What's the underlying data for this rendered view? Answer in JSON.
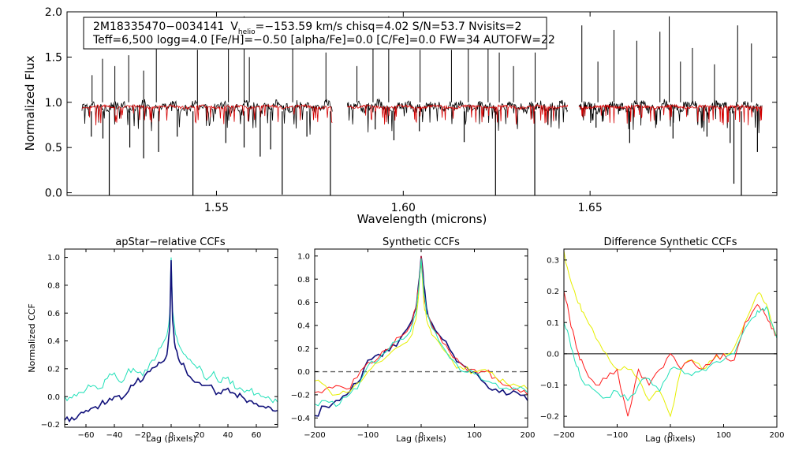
{
  "colors": {
    "observed": "#000000",
    "model": "#d40000",
    "cyan": "#1fe0b8",
    "navy": "#10107a",
    "red": "#ff1a1a",
    "yellow": "#e6ef00",
    "dashed": "#666666"
  },
  "header": {
    "id": "2M18335470−0034141",
    "v": "V",
    "helio": "helio",
    "vrest": "=−153.59 km/s  chisq=4.02  S/N=53.7  Nvisits=2",
    "line2": "Teff=6,500 logg=4.0 [Fe/H]=−0.50 [alpha/Fe]=0.0 [C/Fe]=0.0 FW=34 AUTOFW=22"
  },
  "chart_data": [
    {
      "type": "line",
      "name": "spectrum",
      "title": "",
      "xlabel": "Wavelength (microns)",
      "ylabel": "Normalized Flux",
      "xlim": [
        1.51,
        1.7
      ],
      "ylim": [
        -0.03,
        2.0
      ],
      "xticks": [
        1.55,
        1.6,
        1.65
      ],
      "xtick_labels": [
        "1.55",
        "1.60",
        "1.65"
      ],
      "yticks": [
        0.0,
        0.5,
        1.0,
        1.5,
        2.0
      ],
      "ytick_labels": [
        "0.0",
        "0.5",
        "1.0",
        "1.5",
        "2.0"
      ],
      "chip_ranges": [
        [
          1.514,
          1.581
        ],
        [
          1.585,
          1.644
        ],
        [
          1.647,
          1.696
        ]
      ],
      "continuum": 0.95,
      "series": [
        {
          "name": "observed",
          "color": "#000000"
        },
        {
          "name": "model",
          "color": "#d40000"
        }
      ],
      "emission_lines": [
        {
          "x": 1.5167,
          "y": 1.3
        },
        {
          "x": 1.5195,
          "y": 1.48
        },
        {
          "x": 1.5228,
          "y": 1.4
        },
        {
          "x": 1.5265,
          "y": 1.52
        },
        {
          "x": 1.5305,
          "y": 1.35
        },
        {
          "x": 1.5339,
          "y": 1.6
        },
        {
          "x": 1.5449,
          "y": 1.58
        },
        {
          "x": 1.5532,
          "y": 1.62
        },
        {
          "x": 1.5574,
          "y": 1.95
        },
        {
          "x": 1.5588,
          "y": 1.5
        },
        {
          "x": 1.5704,
          "y": 1.9
        },
        {
          "x": 1.5793,
          "y": 1.55
        },
        {
          "x": 1.5876,
          "y": 1.4
        },
        {
          "x": 1.5919,
          "y": 1.62
        },
        {
          "x": 1.5961,
          "y": 1.95
        },
        {
          "x": 1.6045,
          "y": 1.58
        },
        {
          "x": 1.6129,
          "y": 1.58
        },
        {
          "x": 1.6174,
          "y": 1.62
        },
        {
          "x": 1.6227,
          "y": 1.8
        },
        {
          "x": 1.6257,
          "y": 1.55
        },
        {
          "x": 1.6295,
          "y": 1.4
        },
        {
          "x": 1.6353,
          "y": 1.55
        },
        {
          "x": 1.6478,
          "y": 1.85
        },
        {
          "x": 1.6521,
          "y": 1.45
        },
        {
          "x": 1.6564,
          "y": 1.8
        },
        {
          "x": 1.6625,
          "y": 1.68
        },
        {
          "x": 1.6687,
          "y": 1.78
        },
        {
          "x": 1.6712,
          "y": 1.95
        },
        {
          "x": 1.6742,
          "y": 1.45
        },
        {
          "x": 1.6774,
          "y": 1.6
        },
        {
          "x": 1.6833,
          "y": 1.42
        },
        {
          "x": 1.6895,
          "y": 1.85
        },
        {
          "x": 1.6932,
          "y": 1.65
        }
      ],
      "absorption_lines": [
        {
          "x": 1.5165,
          "y": 0.62
        },
        {
          "x": 1.5196,
          "y": 0.6
        },
        {
          "x": 1.5213,
          "y": -0.03
        },
        {
          "x": 1.5268,
          "y": 0.5
        },
        {
          "x": 1.5305,
          "y": 0.38
        },
        {
          "x": 1.5345,
          "y": 0.45
        },
        {
          "x": 1.5395,
          "y": 0.62
        },
        {
          "x": 1.5437,
          "y": -0.03
        },
        {
          "x": 1.5525,
          "y": 0.55
        },
        {
          "x": 1.5574,
          "y": 0.5
        },
        {
          "x": 1.5617,
          "y": 0.4
        },
        {
          "x": 1.5645,
          "y": 0.48
        },
        {
          "x": 1.5676,
          "y": -0.02
        },
        {
          "x": 1.5742,
          "y": 0.62
        },
        {
          "x": 1.5805,
          "y": -0.03
        },
        {
          "x": 1.5925,
          "y": 0.7
        },
        {
          "x": 1.5975,
          "y": 0.58
        },
        {
          "x": 1.6043,
          "y": 0.68
        },
        {
          "x": 1.6163,
          "y": 0.56
        },
        {
          "x": 1.6247,
          "y": -0.03
        },
        {
          "x": 1.6352,
          "y": -0.03
        },
        {
          "x": 1.6387,
          "y": 0.75
        },
        {
          "x": 1.6516,
          "y": 0.72
        },
        {
          "x": 1.6606,
          "y": 0.55
        },
        {
          "x": 1.6722,
          "y": 0.6
        },
        {
          "x": 1.6813,
          "y": 0.62
        },
        {
          "x": 1.6875,
          "y": 0.55
        },
        {
          "x": 1.6885,
          "y": 0.1
        },
        {
          "x": 1.6905,
          "y": -0.03
        },
        {
          "x": 1.6948,
          "y": 0.45
        }
      ]
    },
    {
      "type": "line",
      "name": "apstar-ccf",
      "title": "apStar−relative CCFs",
      "xlabel": "Lag (pixels)",
      "ylabel": "Normalized CCF",
      "xlim": [
        -75,
        75
      ],
      "ylim": [
        -0.22,
        1.06
      ],
      "xticks": [
        -60,
        -40,
        -20,
        0,
        20,
        40,
        60
      ],
      "xtick_labels": [
        "−60",
        "−40",
        "−20",
        "0",
        "20",
        "40",
        "60"
      ],
      "yticks": [
        -0.2,
        0.0,
        0.2,
        0.4,
        0.6,
        0.8,
        1.0
      ],
      "ytick_labels": [
        "−0.2",
        "0.0",
        "0.2",
        "0.4",
        "0.6",
        "0.8",
        "1.0"
      ],
      "series": [
        {
          "name": "cyan",
          "color": "#1fe0b8",
          "x": [
            -75,
            -70,
            -65,
            -60,
            -55,
            -50,
            -45,
            -40,
            -35,
            -30,
            -25,
            -20,
            -15,
            -10,
            -6,
            -3,
            -1,
            0,
            1,
            3,
            6,
            10,
            15,
            20,
            25,
            30,
            35,
            40,
            45,
            50,
            55,
            60,
            65,
            70,
            75
          ],
          "y": [
            0.0,
            -0.01,
            0.03,
            0.05,
            0.08,
            0.06,
            0.13,
            0.17,
            0.1,
            0.2,
            0.18,
            0.15,
            0.24,
            0.3,
            0.38,
            0.44,
            0.6,
            1.0,
            0.62,
            0.45,
            0.36,
            0.3,
            0.24,
            0.22,
            0.12,
            0.18,
            0.1,
            0.14,
            0.06,
            0.05,
            0.04,
            0.02,
            0.0,
            -0.02,
            -0.04
          ]
        },
        {
          "name": "navy",
          "color": "#10107a",
          "x": [
            -75,
            -70,
            -65,
            -60,
            -55,
            -50,
            -45,
            -40,
            -35,
            -30,
            -25,
            -20,
            -15,
            -10,
            -6,
            -3,
            -1,
            0,
            1,
            3,
            6,
            10,
            15,
            20,
            25,
            30,
            35,
            40,
            45,
            50,
            55,
            60,
            65,
            70,
            75
          ],
          "y": [
            -0.17,
            -0.15,
            -0.13,
            -0.1,
            -0.08,
            -0.06,
            -0.04,
            0.0,
            -0.02,
            0.04,
            0.1,
            0.12,
            0.18,
            0.22,
            0.25,
            0.3,
            0.5,
            0.98,
            0.55,
            0.35,
            0.25,
            0.2,
            0.12,
            0.1,
            0.08,
            0.05,
            0.02,
            0.06,
            0.02,
            0.0,
            -0.03,
            -0.05,
            -0.07,
            -0.08,
            -0.1
          ]
        }
      ]
    },
    {
      "type": "line",
      "name": "synthetic-ccf",
      "title": "Synthetic CCFs",
      "xlabel": "Lag (pixels)",
      "ylabel": "",
      "xlim": [
        -200,
        200
      ],
      "ylim": [
        -0.48,
        1.06
      ],
      "xticks": [
        -200,
        -100,
        0,
        100,
        200
      ],
      "xtick_labels": [
        "−200",
        "−100",
        "0",
        "100",
        "200"
      ],
      "yticks": [
        -0.4,
        -0.2,
        0.0,
        0.2,
        0.4,
        0.6,
        0.8,
        1.0
      ],
      "ytick_labels": [
        "−0.4",
        "−0.2",
        "0.0",
        "0.2",
        "0.4",
        "0.6",
        "0.8",
        "1.0"
      ],
      "reference_line": 0.0,
      "series": [
        {
          "name": "navy",
          "color": "#10107a",
          "x": [
            -200,
            -180,
            -160,
            -140,
            -120,
            -100,
            -80,
            -60,
            -40,
            -20,
            -10,
            -5,
            0,
            5,
            10,
            20,
            40,
            60,
            80,
            100,
            120,
            140,
            160,
            180,
            200
          ],
          "y": [
            -0.38,
            -0.3,
            -0.25,
            -0.2,
            -0.1,
            0.1,
            0.15,
            0.18,
            0.28,
            0.42,
            0.55,
            0.75,
            1.0,
            0.75,
            0.55,
            0.42,
            0.28,
            0.15,
            0.05,
            0.0,
            -0.1,
            -0.15,
            -0.2,
            -0.18,
            -0.25
          ]
        },
        {
          "name": "red",
          "color": "#ff1a1a",
          "x": [
            -200,
            -180,
            -160,
            -140,
            -120,
            -100,
            -80,
            -60,
            -40,
            -20,
            -10,
            -5,
            0,
            5,
            10,
            20,
            40,
            60,
            80,
            100,
            120,
            140,
            160,
            180,
            200
          ],
          "y": [
            -0.18,
            -0.15,
            -0.12,
            -0.15,
            -0.05,
            0.08,
            0.12,
            0.2,
            0.3,
            0.4,
            0.55,
            0.72,
            1.0,
            0.7,
            0.5,
            0.4,
            0.25,
            0.12,
            0.05,
            0.02,
            0.0,
            -0.05,
            -0.12,
            -0.15,
            -0.2
          ]
        },
        {
          "name": "yellow",
          "color": "#e6ef00",
          "x": [
            -200,
            -180,
            -160,
            -140,
            -120,
            -100,
            -80,
            -60,
            -40,
            -20,
            -10,
            -5,
            0,
            5,
            10,
            20,
            40,
            60,
            80,
            100,
            120,
            140,
            160,
            180,
            200
          ],
          "y": [
            -0.08,
            -0.12,
            -0.2,
            -0.18,
            -0.1,
            0.0,
            0.08,
            0.15,
            0.22,
            0.3,
            0.45,
            0.65,
            0.95,
            0.6,
            0.45,
            0.32,
            0.2,
            0.08,
            0.02,
            0.0,
            0.02,
            -0.05,
            -0.1,
            -0.12,
            -0.15
          ]
        },
        {
          "name": "cyan",
          "color": "#1fe0b8",
          "x": [
            -200,
            -180,
            -160,
            -140,
            -120,
            -100,
            -80,
            -60,
            -40,
            -20,
            -10,
            -5,
            0,
            5,
            10,
            20,
            40,
            60,
            80,
            100,
            120,
            140,
            160,
            180,
            200
          ],
          "y": [
            -0.28,
            -0.25,
            -0.3,
            -0.22,
            -0.15,
            0.05,
            0.1,
            0.2,
            0.28,
            0.35,
            0.5,
            0.7,
            0.98,
            0.68,
            0.5,
            0.38,
            0.22,
            0.1,
            0.0,
            -0.02,
            -0.08,
            -0.1,
            -0.14,
            -0.15,
            -0.18
          ]
        }
      ]
    },
    {
      "type": "line",
      "name": "difference-ccf",
      "title": "Difference Synthetic CCFs",
      "xlabel": "Lag (pixels)",
      "ylabel": "",
      "xlim": [
        -200,
        200
      ],
      "ylim": [
        -0.235,
        0.335
      ],
      "xticks": [
        -200,
        -100,
        0,
        100,
        200
      ],
      "xtick_labels": [
        "−200",
        "−100",
        "0",
        "100",
        "200"
      ],
      "yticks": [
        -0.2,
        -0.1,
        0.0,
        0.1,
        0.2,
        0.3
      ],
      "ytick_labels": [
        "−0.2",
        "−0.1",
        "0.0",
        "0.1",
        "0.2",
        "0.3"
      ],
      "reference_line": 0.0,
      "series": [
        {
          "name": "yellow",
          "color": "#e6ef00",
          "x": [
            -200,
            -190,
            -180,
            -170,
            -160,
            -140,
            -120,
            -100,
            -80,
            -60,
            -40,
            -20,
            0,
            20,
            40,
            60,
            80,
            100,
            120,
            140,
            160,
            170,
            180,
            190,
            200
          ],
          "y": [
            0.33,
            0.25,
            0.2,
            0.16,
            0.12,
            0.05,
            0.0,
            -0.05,
            -0.05,
            -0.08,
            -0.15,
            -0.12,
            -0.2,
            -0.05,
            -0.02,
            -0.05,
            -0.02,
            0.0,
            0.02,
            0.1,
            0.18,
            0.19,
            0.16,
            0.1,
            0.05
          ]
        },
        {
          "name": "red",
          "color": "#ff1a1a",
          "x": [
            -200,
            -190,
            -180,
            -170,
            -160,
            -140,
            -120,
            -100,
            -80,
            -60,
            -40,
            -20,
            0,
            20,
            40,
            60,
            80,
            100,
            120,
            140,
            160,
            170,
            180,
            190,
            200
          ],
          "y": [
            0.2,
            0.12,
            0.05,
            -0.02,
            -0.05,
            -0.1,
            -0.08,
            -0.05,
            -0.2,
            -0.05,
            -0.1,
            -0.05,
            0.0,
            -0.05,
            -0.02,
            -0.05,
            -0.02,
            0.0,
            -0.02,
            0.1,
            0.15,
            0.14,
            0.12,
            0.08,
            0.06
          ]
        },
        {
          "name": "cyan",
          "color": "#1fe0b8",
          "x": [
            -200,
            -190,
            -180,
            -170,
            -160,
            -140,
            -120,
            -100,
            -80,
            -60,
            -40,
            -20,
            0,
            20,
            40,
            60,
            80,
            100,
            120,
            140,
            160,
            170,
            180,
            190,
            200
          ],
          "y": [
            0.1,
            0.05,
            -0.02,
            -0.07,
            -0.1,
            -0.12,
            -0.14,
            -0.12,
            -0.15,
            -0.1,
            -0.08,
            -0.12,
            -0.05,
            -0.05,
            -0.07,
            -0.05,
            -0.03,
            -0.02,
            0.0,
            0.08,
            0.12,
            0.14,
            0.15,
            0.1,
            0.05
          ]
        }
      ]
    }
  ]
}
